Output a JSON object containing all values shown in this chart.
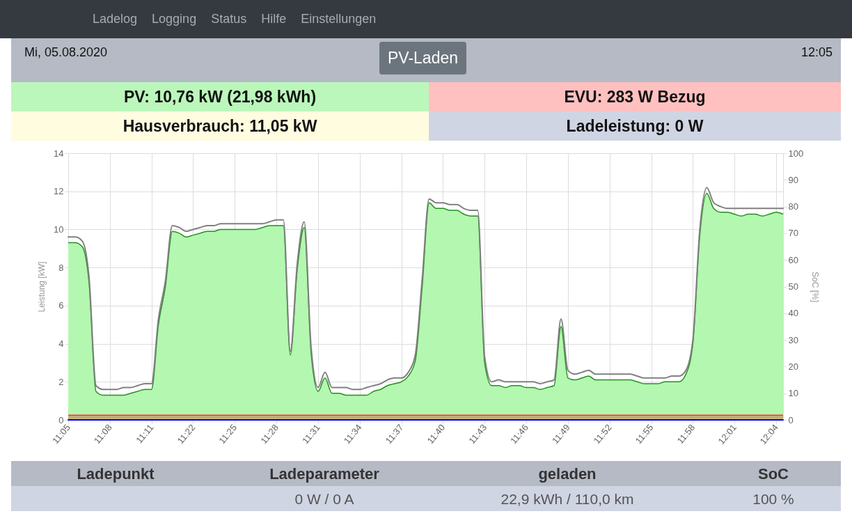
{
  "chart_data": [
    {
      "type": "other",
      "annotations": [
        "Ladelog",
        "Logging",
        "Status",
        "Hilfe",
        "Einstellungen",
        "Mi, 05.08.2020",
        "PV-Laden",
        "12:05",
        "PV: 10,76 kW (21,98 kWh)",
        "EVU: 283 W Bezug",
        "Hausverbrauch: 11,05 kW",
        "Ladeleistung: 0 W"
      ]
    },
    {
      "type": "line",
      "ylabel": "Leistung [kW]",
      "y2label": "SoC [%]",
      "categories": [
        "11:05",
        null,
        null,
        null,
        null,
        null,
        "11:08",
        null,
        null,
        null,
        null,
        null,
        "11:11",
        null,
        null,
        null,
        null,
        null,
        "11:22",
        null,
        null,
        null,
        null,
        null,
        "11:25",
        null,
        null,
        null,
        null,
        null,
        "11:28",
        null,
        null,
        null,
        null,
        null,
        "11:31",
        null,
        null,
        null,
        null,
        null,
        "11:34",
        null,
        null,
        null,
        null,
        null,
        "11:37",
        null,
        null,
        null,
        null,
        null,
        "11:40",
        null,
        null,
        null,
        null,
        null,
        "11:43",
        null,
        null,
        null,
        null,
        null,
        "11:46",
        null,
        null,
        null,
        null,
        null,
        "11:49",
        null,
        null,
        null,
        null,
        null,
        "11:52",
        null,
        null,
        null,
        null,
        null,
        "11:55",
        null,
        null,
        null,
        null,
        null,
        "11:58",
        null,
        null,
        null,
        null,
        null,
        "12:01",
        null,
        null,
        null,
        null,
        null,
        "12:04",
        null
      ],
      "ylim": [
        0,
        14
      ],
      "yticks": [
        0,
        2,
        4,
        6,
        8,
        10,
        12,
        14
      ],
      "y2lim": [
        0,
        100
      ],
      "y2ticks": [
        0,
        10,
        20,
        30,
        40,
        50,
        60,
        70,
        80,
        90,
        100
      ],
      "grid": true,
      "bands": [
        {
          "axis": "y",
          "from": 0,
          "to": 0.25,
          "color": "#c8aa7c"
        }
      ],
      "ref_lines": [
        {
          "axis": "y",
          "value": 0.25,
          "color": "#ff3030"
        }
      ],
      "series": [
        {
          "type": "area",
          "color": "#b3f7b0",
          "values": [
            9.3,
            9.3,
            9.1,
            7.2,
            1.5,
            1.3,
            1.3,
            1.3,
            1.3,
            1.4,
            1.5,
            1.6,
            1.6,
            5.0,
            7.0,
            9.9,
            9.8,
            9.6,
            9.7,
            9.8,
            9.9,
            9.9,
            10.0,
            10.0,
            10.0,
            10.0,
            10.0,
            10.0,
            10.1,
            10.2,
            10.2,
            10.2,
            3.4,
            7.9,
            10.1,
            3.5,
            1.5,
            2.2,
            1.4,
            1.4,
            1.3,
            1.3,
            1.3,
            1.3,
            1.5,
            1.6,
            1.8,
            1.9,
            2.0,
            2.3,
            3.1,
            7.0,
            11.4,
            11.1,
            11.1,
            11.0,
            11.0,
            10.8,
            10.7,
            10.7,
            3.0,
            1.8,
            1.8,
            1.7,
            1.8,
            1.8,
            1.7,
            1.7,
            1.6,
            1.7,
            1.8,
            4.9,
            2.2,
            2.1,
            2.2,
            2.3,
            2.1,
            2.1,
            2.1,
            2.1,
            2.1,
            2.1,
            2.0,
            1.9,
            1.9,
            1.9,
            2.0,
            2.0,
            2.0,
            2.4,
            4.0,
            9.7,
            11.9,
            11.1,
            10.9,
            10.9,
            10.8,
            10.7,
            10.8,
            10.8,
            10.7,
            10.8,
            10.9,
            10.8
          ]
        },
        {
          "type": "line",
          "color": "#808080",
          "values": [
            9.6,
            9.6,
            9.4,
            7.5,
            1.8,
            1.6,
            1.6,
            1.6,
            1.7,
            1.7,
            1.8,
            1.9,
            1.9,
            5.3,
            7.3,
            10.2,
            10.1,
            9.9,
            10.0,
            10.1,
            10.2,
            10.2,
            10.3,
            10.3,
            10.3,
            10.3,
            10.3,
            10.3,
            10.3,
            10.4,
            10.5,
            10.5,
            3.6,
            8.2,
            10.4,
            3.8,
            1.7,
            2.5,
            1.7,
            1.7,
            1.7,
            1.6,
            1.6,
            1.7,
            1.8,
            1.9,
            2.1,
            2.2,
            2.2,
            2.5,
            3.4,
            7.4,
            11.6,
            11.4,
            11.4,
            11.3,
            11.3,
            11.1,
            11.0,
            11.0,
            3.3,
            2.0,
            2.1,
            2.0,
            2.0,
            2.0,
            2.0,
            2.0,
            1.9,
            2.0,
            2.1,
            5.3,
            2.6,
            2.4,
            2.5,
            2.6,
            2.4,
            2.4,
            2.4,
            2.4,
            2.4,
            2.4,
            2.3,
            2.2,
            2.2,
            2.2,
            2.2,
            2.3,
            2.3,
            2.6,
            4.2,
            10.0,
            12.2,
            11.4,
            11.2,
            11.1,
            11.1,
            11.1,
            11.1,
            11.1,
            11.1,
            11.1,
            11.1,
            11.1
          ]
        },
        {
          "type": "line",
          "axis": "y2",
          "color": "#0000ff",
          "values": [
            0,
            0,
            0,
            0,
            0,
            0,
            0,
            0,
            0,
            0,
            0,
            0,
            0,
            0,
            0,
            0,
            0,
            0,
            0,
            0,
            0,
            0,
            0,
            0,
            0,
            0,
            0,
            0,
            0,
            0,
            0,
            0,
            0,
            0,
            0,
            0,
            0,
            0,
            0,
            0,
            0,
            0,
            0,
            0,
            0,
            0,
            0,
            0,
            0,
            0,
            0,
            0,
            0,
            0,
            0,
            0,
            0,
            0,
            0,
            0,
            0,
            0,
            0,
            0,
            0,
            0,
            0,
            0,
            0,
            0,
            0,
            0,
            0,
            0,
            0,
            0,
            0,
            0,
            0,
            0,
            0,
            0,
            0,
            0,
            0,
            0,
            0,
            0,
            0,
            0,
            0,
            0,
            0,
            0,
            0,
            0,
            0,
            0,
            0,
            0,
            0,
            0,
            0,
            0
          ]
        }
      ]
    },
    {
      "type": "other",
      "annotations": [
        "Ladepunkt",
        "Ladeparameter",
        "geladen",
        "SoC",
        "0 W / 0 A",
        "22,9 kWh / 110,0 km",
        "100 %"
      ]
    }
  ]
}
